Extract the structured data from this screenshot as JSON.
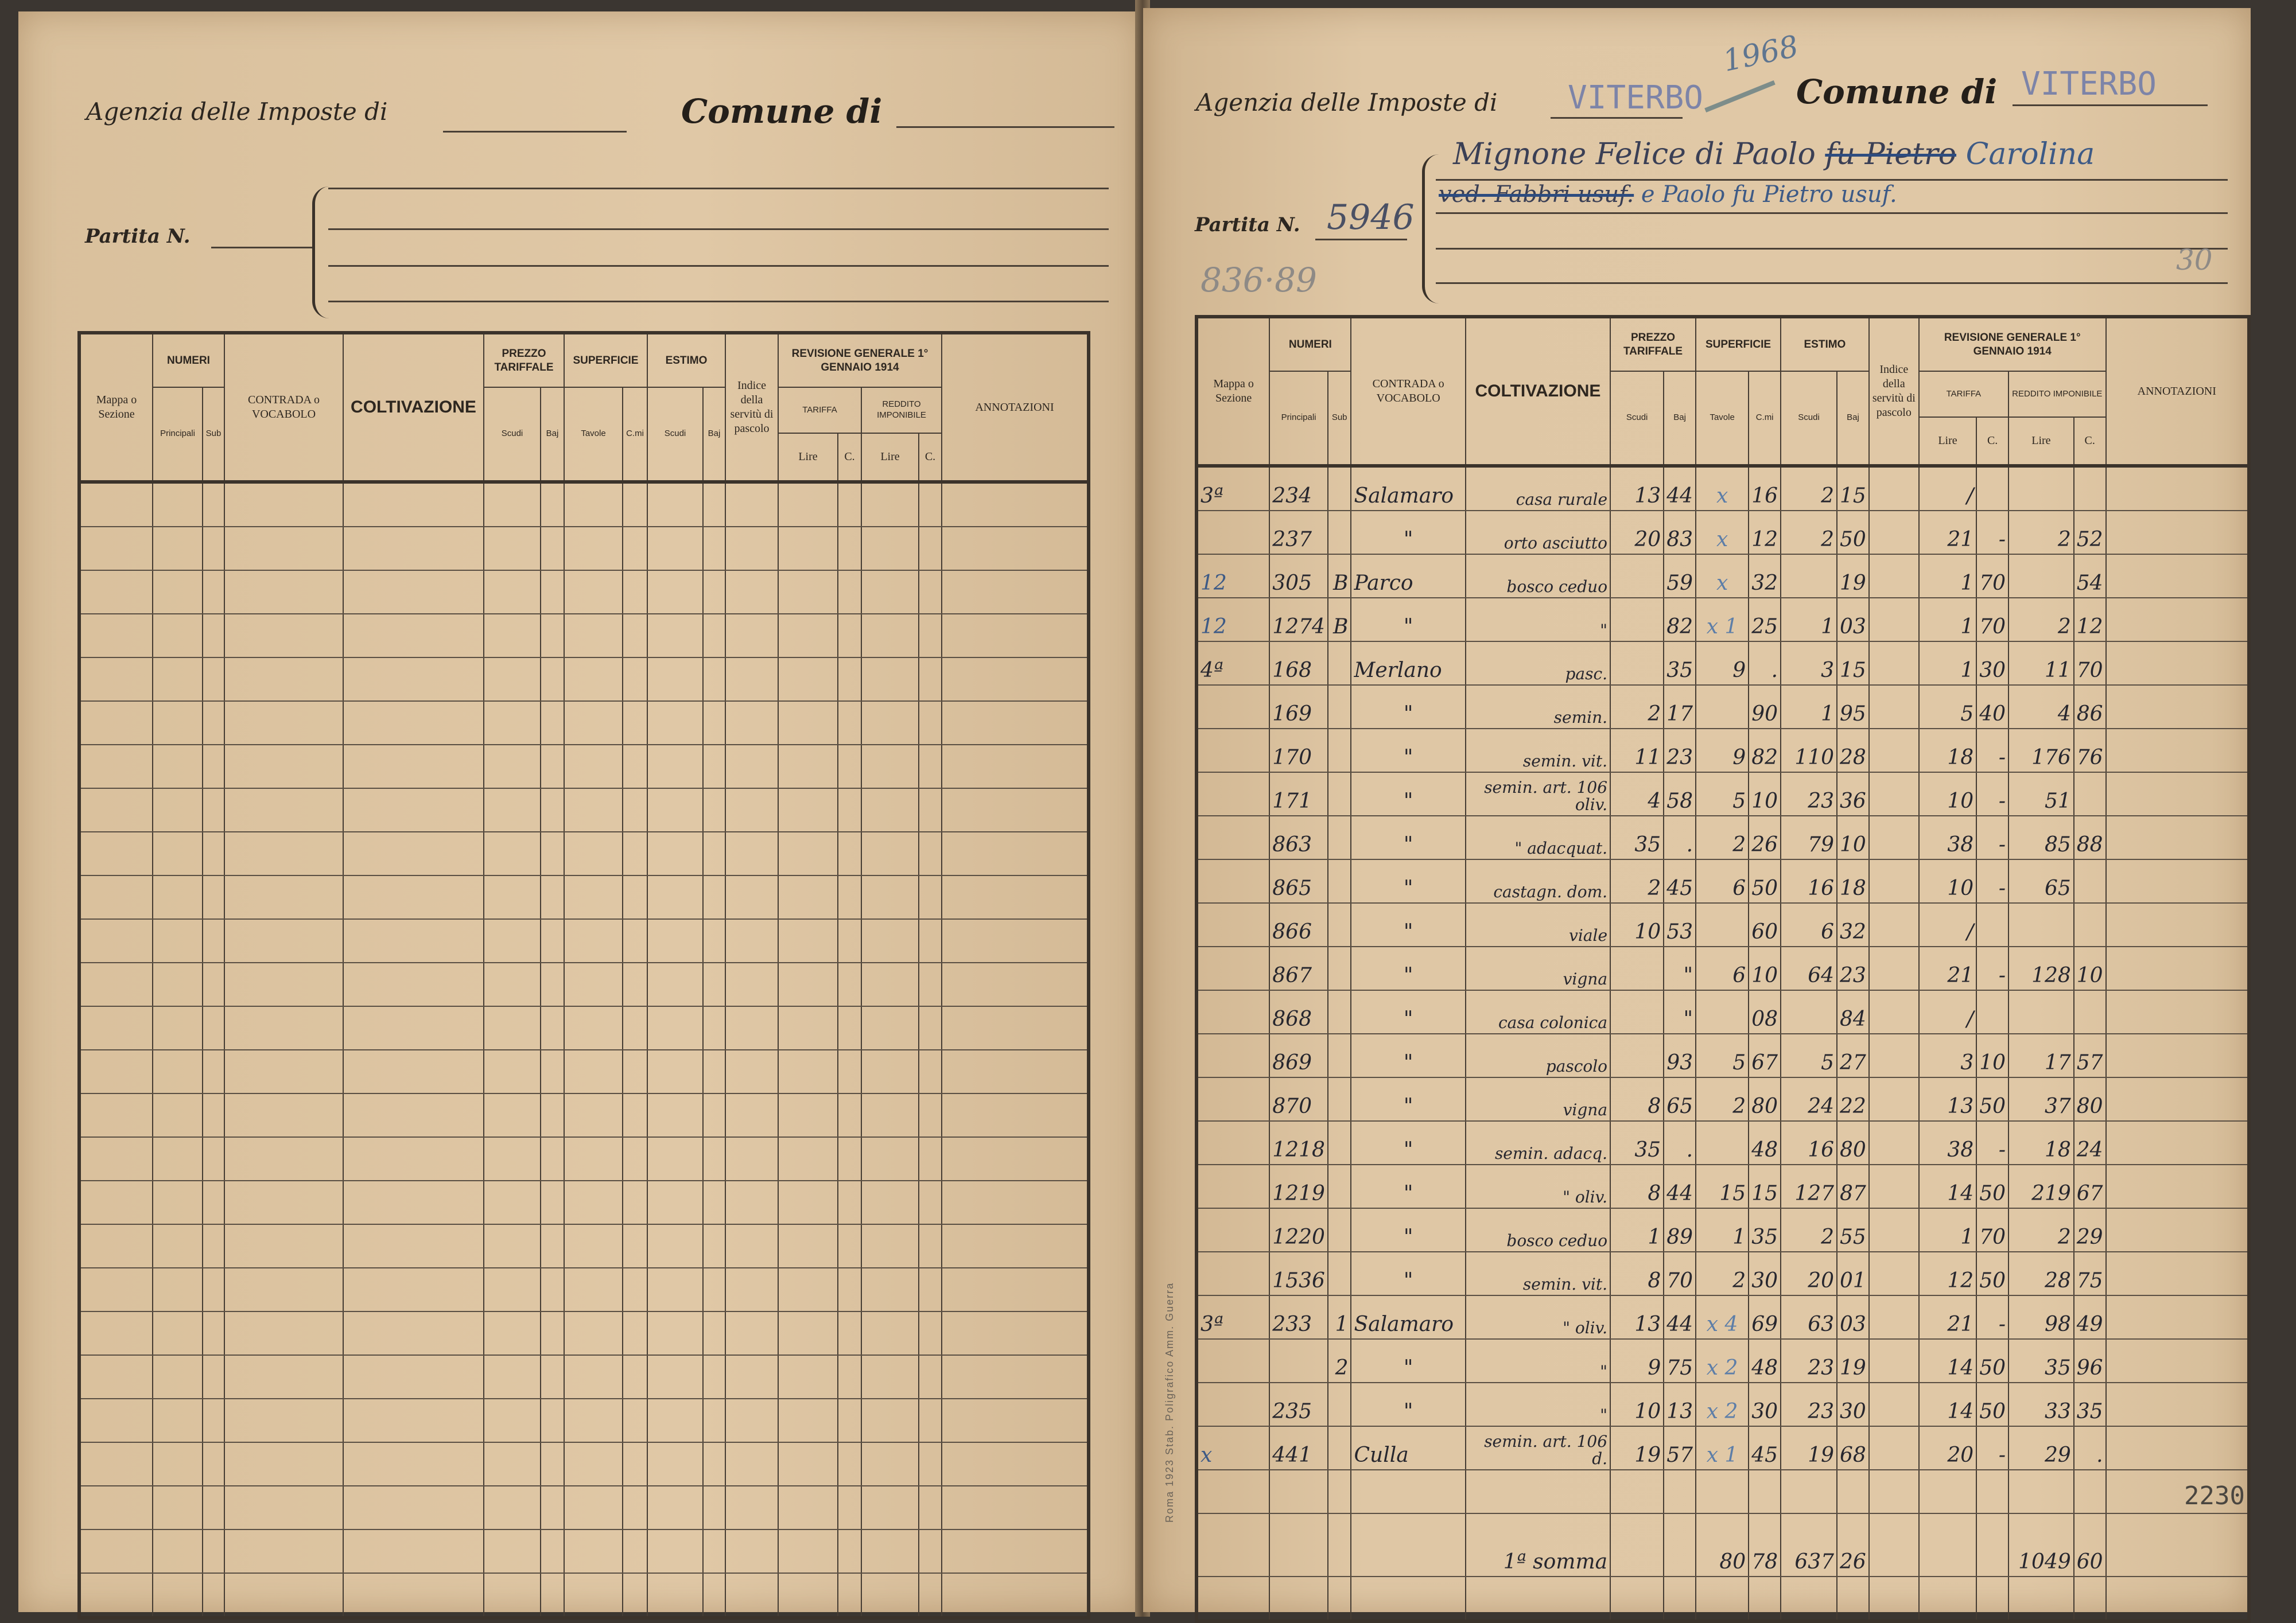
{
  "form": {
    "agenzia_label": "Agenzia delle Imposte di",
    "comune_label": "Comune di",
    "partita_label": "Partita N.",
    "headers": {
      "mappa": "Mappa o Sezione",
      "numeri": "NUMERI",
      "principali": "Principali",
      "sub": "Sub",
      "contrada": "CONTRADA o VOCABOLO",
      "coltivazione": "COLTIVAZIONE",
      "prezzo": "PREZZO TARIFFALE",
      "superficie": "SUPERFICIE",
      "estimo": "ESTIMO",
      "scudi": "Scudi",
      "baj": "Baj",
      "tavole": "Tavole",
      "cmi": "C.mi",
      "indice": "Indice della servitù di pascolo",
      "revisione": "REVISIONE GENERALE 1° GENNAIO 1914",
      "tariffa": "TARIFFA",
      "reddito": "REDDITO IMPONIBILE",
      "lire": "Lire",
      "c": "C.",
      "annotazioni": "ANNOTAZIONI"
    },
    "printer_credit": "Roma 1923 Stab. Poligrafico Amm. Guerra"
  },
  "right_page": {
    "agenzia_value": "VITERBO",
    "comune_value": "VITERBO",
    "year_note": "1968",
    "partita_value": "5946",
    "old_ref": "836·89",
    "corner_note": "30",
    "owner_line1": {
      "text": "Mignone Felice di Paolo",
      "struck": "fu Pietro",
      "after": "Carolina"
    },
    "owner_line2": {
      "struck": "ved. Fabbri usuf.",
      "after": "e Paolo fu Pietro usuf."
    },
    "rows": [
      {
        "mappa": "3ª",
        "principale": "234",
        "sub": "",
        "contrada": "Salamaro",
        "coltivazione": "casa rurale",
        "p_scudi": "13",
        "p_baj": "44",
        "s_tavole": "x",
        "s_cmi": "16",
        "e_scudi": "2",
        "e_baj": "15",
        "t_lire": "/",
        "t_c": "",
        "r_lire": "",
        "r_c": ""
      },
      {
        "mappa": "",
        "principale": "237",
        "sub": "",
        "contrada": "\"",
        "coltivazione": "orto asciutto",
        "p_scudi": "20",
        "p_baj": "83",
        "s_tavole": "x",
        "s_cmi": "12",
        "e_scudi": "2",
        "e_baj": "50",
        "t_lire": "21",
        "t_c": "-",
        "r_lire": "2",
        "r_c": "52"
      },
      {
        "mappa": "12",
        "principale": "305",
        "sub": "B",
        "contrada": "Parco",
        "coltivazione": "bosco ceduo",
        "p_scudi": "",
        "p_baj": "59",
        "s_tavole": "x",
        "s_cmi": "32",
        "e_scudi": "",
        "e_baj": "19",
        "t_lire": "1",
        "t_c": "70",
        "r_lire": "",
        "r_c": "54"
      },
      {
        "mappa": "12",
        "principale": "1274",
        "sub": "B",
        "contrada": "\"",
        "coltivazione": "\"",
        "p_scudi": "",
        "p_baj": "82",
        "s_tavole": "x 1",
        "s_cmi": "25",
        "e_scudi": "1",
        "e_baj": "03",
        "t_lire": "1",
        "t_c": "70",
        "r_lire": "2",
        "r_c": "12"
      },
      {
        "mappa": "4ª",
        "principale": "168",
        "sub": "",
        "contrada": "Merlano",
        "coltivazione": "pasc.",
        "p_scudi": "",
        "p_baj": "35",
        "s_tavole": "9",
        "s_cmi": ".",
        "e_scudi": "3",
        "e_baj": "15",
        "t_lire": "1",
        "t_c": "30",
        "r_lire": "11",
        "r_c": "70"
      },
      {
        "mappa": "",
        "principale": "169",
        "sub": "",
        "contrada": "\"",
        "coltivazione": "semin.",
        "p_scudi": "2",
        "p_baj": "17",
        "s_tavole": "",
        "s_cmi": "90",
        "e_scudi": "1",
        "e_baj": "95",
        "t_lire": "5",
        "t_c": "40",
        "r_lire": "4",
        "r_c": "86"
      },
      {
        "mappa": "",
        "principale": "170",
        "sub": "",
        "contrada": "\"",
        "coltivazione": "semin. vit.",
        "p_scudi": "11",
        "p_baj": "23",
        "s_tavole": "9",
        "s_cmi": "82",
        "e_scudi": "110",
        "e_baj": "28",
        "t_lire": "18",
        "t_c": "-",
        "r_lire": "176",
        "r_c": "76"
      },
      {
        "mappa": "",
        "principale": "171",
        "sub": "",
        "contrada": "\"",
        "coltivazione": "semin. art. 106 oliv.",
        "p_scudi": "4",
        "p_baj": "58",
        "s_tavole": "5",
        "s_cmi": "10",
        "e_scudi": "23",
        "e_baj": "36",
        "t_lire": "10",
        "t_c": "-",
        "r_lire": "51",
        "r_c": ""
      },
      {
        "mappa": "",
        "principale": "863",
        "sub": "",
        "contrada": "\"",
        "coltivazione": "\" adacquat.",
        "p_scudi": "35",
        "p_baj": ".",
        "s_tavole": "2",
        "s_cmi": "26",
        "e_scudi": "79",
        "e_baj": "10",
        "t_lire": "38",
        "t_c": "-",
        "r_lire": "85",
        "r_c": "88"
      },
      {
        "mappa": "",
        "principale": "865",
        "sub": "",
        "contrada": "\"",
        "coltivazione": "castagn. dom.",
        "p_scudi": "2",
        "p_baj": "45",
        "s_tavole": "6",
        "s_cmi": "50",
        "e_scudi": "16",
        "e_baj": "18",
        "t_lire": "10",
        "t_c": "-",
        "r_lire": "65",
        "r_c": ""
      },
      {
        "mappa": "",
        "principale": "866",
        "sub": "",
        "contrada": "\"",
        "coltivazione": "viale",
        "p_scudi": "10",
        "p_baj": "53",
        "s_tavole": "",
        "s_cmi": "60",
        "e_scudi": "6",
        "e_baj": "32",
        "t_lire": "/",
        "t_c": "",
        "r_lire": "",
        "r_c": ""
      },
      {
        "mappa": "",
        "principale": "867",
        "sub": "",
        "contrada": "\"",
        "coltivazione": "vigna",
        "p_scudi": "",
        "p_baj": "\"",
        "s_tavole": "6",
        "s_cmi": "10",
        "e_scudi": "64",
        "e_baj": "23",
        "t_lire": "21",
        "t_c": "-",
        "r_lire": "128",
        "r_c": "10"
      },
      {
        "mappa": "",
        "principale": "868",
        "sub": "",
        "contrada": "\"",
        "coltivazione": "casa colonica",
        "p_scudi": "",
        "p_baj": "\"",
        "s_tavole": "",
        "s_cmi": "08",
        "e_scudi": "",
        "e_baj": "84",
        "t_lire": "/",
        "t_c": "",
        "r_lire": "",
        "r_c": ""
      },
      {
        "mappa": "",
        "principale": "869",
        "sub": "",
        "contrada": "\"",
        "coltivazione": "pascolo",
        "p_scudi": "",
        "p_baj": "93",
        "s_tavole": "5",
        "s_cmi": "67",
        "e_scudi": "5",
        "e_baj": "27",
        "t_lire": "3",
        "t_c": "10",
        "r_lire": "17",
        "r_c": "57"
      },
      {
        "mappa": "",
        "principale": "870",
        "sub": "",
        "contrada": "\"",
        "coltivazione": "vigna",
        "p_scudi": "8",
        "p_baj": "65",
        "s_tavole": "2",
        "s_cmi": "80",
        "e_scudi": "24",
        "e_baj": "22",
        "t_lire": "13",
        "t_c": "50",
        "r_lire": "37",
        "r_c": "80"
      },
      {
        "mappa": "",
        "principale": "1218",
        "sub": "",
        "contrada": "\"",
        "coltivazione": "semin. adacq.",
        "p_scudi": "35",
        "p_baj": ".",
        "s_tavole": "",
        "s_cmi": "48",
        "e_scudi": "16",
        "e_baj": "80",
        "t_lire": "38",
        "t_c": "-",
        "r_lire": "18",
        "r_c": "24"
      },
      {
        "mappa": "",
        "principale": "1219",
        "sub": "",
        "contrada": "\"",
        "coltivazione": "\" oliv.",
        "p_scudi": "8",
        "p_baj": "44",
        "s_tavole": "15",
        "s_cmi": "15",
        "e_scudi": "127",
        "e_baj": "87",
        "t_lire": "14",
        "t_c": "50",
        "r_lire": "219",
        "r_c": "67"
      },
      {
        "mappa": "",
        "principale": "1220",
        "sub": "",
        "contrada": "\"",
        "coltivazione": "bosco ceduo",
        "p_scudi": "1",
        "p_baj": "89",
        "s_tavole": "1",
        "s_cmi": "35",
        "e_scudi": "2",
        "e_baj": "55",
        "t_lire": "1",
        "t_c": "70",
        "r_lire": "2",
        "r_c": "29"
      },
      {
        "mappa": "",
        "principale": "1536",
        "sub": "",
        "contrada": "\"",
        "coltivazione": "semin. vit.",
        "p_scudi": "8",
        "p_baj": "70",
        "s_tavole": "2",
        "s_cmi": "30",
        "e_scudi": "20",
        "e_baj": "01",
        "t_lire": "12",
        "t_c": "50",
        "r_lire": "28",
        "r_c": "75"
      },
      {
        "mappa": "3ª",
        "principale": "233",
        "sub": "1",
        "contrada": "Salamaro",
        "coltivazione": "\" oliv.",
        "p_scudi": "13",
        "p_baj": "44",
        "s_tavole": "x 4",
        "s_cmi": "69",
        "e_scudi": "63",
        "e_baj": "03",
        "t_lire": "21",
        "t_c": "-",
        "r_lire": "98",
        "r_c": "49"
      },
      {
        "mappa": "",
        "principale": "",
        "sub": "2",
        "contrada": "\"",
        "coltivazione": "\"",
        "p_scudi": "9",
        "p_baj": "75",
        "s_tavole": "x 2",
        "s_cmi": "48",
        "e_scudi": "23",
        "e_baj": "19",
        "t_lire": "14",
        "t_c": "50",
        "r_lire": "35",
        "r_c": "96"
      },
      {
        "mappa": "",
        "principale": "235",
        "sub": "",
        "contrada": "\"",
        "coltivazione": "\"",
        "p_scudi": "10",
        "p_baj": "13",
        "s_tavole": "x 2",
        "s_cmi": "30",
        "e_scudi": "23",
        "e_baj": "30",
        "t_lire": "14",
        "t_c": "50",
        "r_lire": "33",
        "r_c": "35"
      },
      {
        "mappa": "x",
        "principale": "441",
        "sub": "",
        "contrada": "Culla",
        "coltivazione": "semin. art. 106 d.",
        "p_scudi": "19",
        "p_baj": "57",
        "s_tavole": "x 1",
        "s_cmi": "45",
        "e_scudi": "19",
        "e_baj": "68",
        "t_lire": "20",
        "t_c": "-",
        "r_lire": "29",
        "r_c": "."
      }
    ],
    "annotation_stamp": "2230",
    "total": {
      "label": "1ª somma",
      "s_tavole": "80",
      "s_cmi": "78",
      "e_scudi": "637",
      "e_baj": "26",
      "r_lire": "1049",
      "r_c": "60"
    }
  },
  "colors": {
    "paper": "#dfc7a5",
    "ink": "#26262e",
    "blue_pencil": "#5d7ea8",
    "red_pencil": "#c4544a"
  }
}
